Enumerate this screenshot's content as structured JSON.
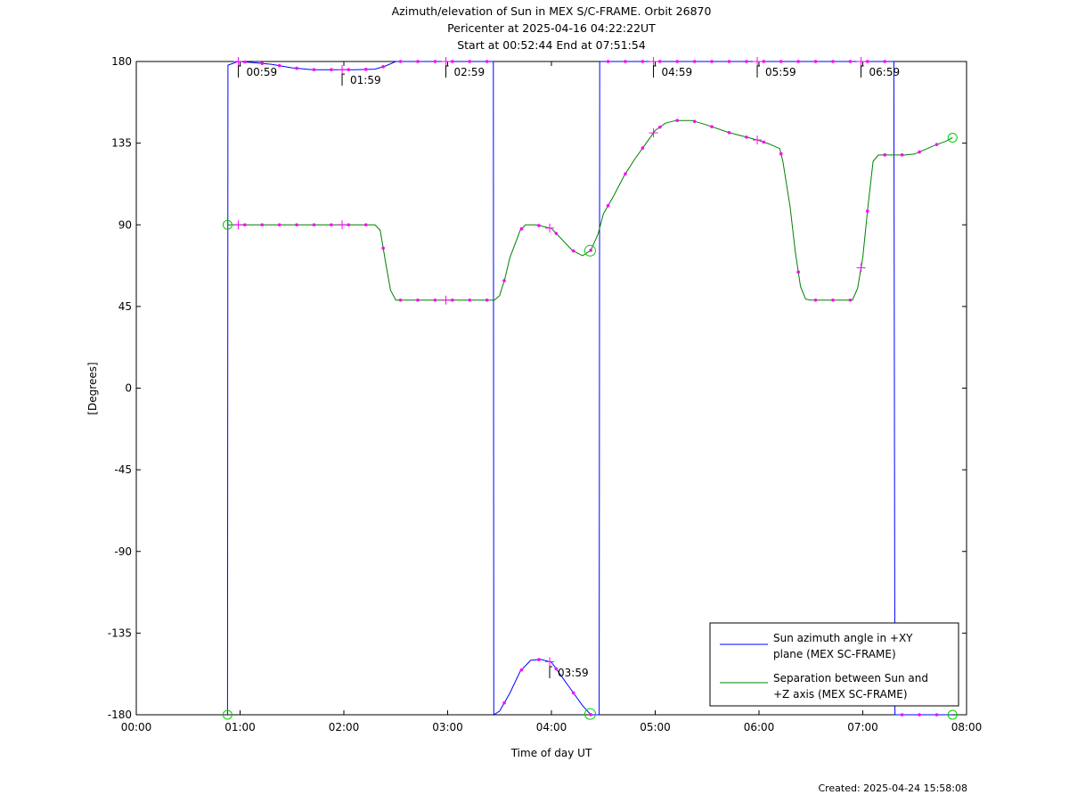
{
  "chart_data": {
    "type": "line",
    "title_lines": [
      "Azimuth/elevation of Sun in MEX S/C-FRAME.  Orbit 26870",
      "Pericenter at 2025-04-16 04:22:22UT",
      "Start at 00:52:44 End at 07:51:54"
    ],
    "xlabel": "Time of day UT",
    "ylabel": "[Degrees]",
    "xlim": [
      0,
      8
    ],
    "ylim": [
      -180,
      180
    ],
    "x_ticks": [
      0,
      1,
      2,
      3,
      4,
      5,
      6,
      7,
      8
    ],
    "x_tick_labels": [
      "00:00",
      "01:00",
      "02:00",
      "03:00",
      "04:00",
      "05:00",
      "06:00",
      "07:00",
      "08:00"
    ],
    "y_ticks": [
      180,
      135,
      90,
      45,
      0,
      -45,
      -90,
      -135,
      -180
    ],
    "y_tick_labels": [
      "180",
      "135",
      "90",
      "45",
      "0",
      "-45",
      "-90",
      "-135",
      "-180"
    ],
    "legend_position": "bottom-right",
    "series": [
      {
        "name_lines": [
          "Sun azimuth angle in +XY",
          "plane (MEX SC-FRAME)"
        ],
        "color": "#0000ff",
        "points": [
          [
            0.879,
            -180
          ],
          [
            0.883,
            178
          ],
          [
            0.98,
            180
          ],
          [
            1.1,
            179.5
          ],
          [
            1.3,
            178.5
          ],
          [
            1.5,
            176.5
          ],
          [
            1.7,
            175.5
          ],
          [
            1.9,
            175.5
          ],
          [
            2.1,
            175.5
          ],
          [
            2.3,
            175.8
          ],
          [
            2.4,
            177.5
          ],
          [
            2.5,
            180
          ],
          [
            3.44,
            180
          ],
          [
            3.445,
            -180
          ],
          [
            3.5,
            -178
          ],
          [
            3.6,
            -168
          ],
          [
            3.7,
            -156
          ],
          [
            3.8,
            -150
          ],
          [
            3.9,
            -149.5
          ],
          [
            4.0,
            -151
          ],
          [
            4.1,
            -159
          ],
          [
            4.2,
            -167
          ],
          [
            4.3,
            -175
          ],
          [
            4.38,
            -180
          ],
          [
            4.46,
            -180
          ],
          [
            4.465,
            180
          ],
          [
            5.0,
            180
          ],
          [
            6.0,
            180
          ],
          [
            7.0,
            180
          ],
          [
            7.3,
            180
          ],
          [
            7.31,
            -180
          ],
          [
            7.865,
            -180
          ]
        ],
        "time_markers": [
          {
            "label": "00:59",
            "x": 0.983,
            "y": 180
          },
          {
            "label": "01:59",
            "x": 1.983,
            "y": 175.5
          },
          {
            "label": "02:59",
            "x": 2.983,
            "y": 180
          },
          {
            "label": "03:59",
            "x": 3.983,
            "y": -151
          },
          {
            "label": "04:59",
            "x": 4.983,
            "y": 180
          },
          {
            "label": "05:59",
            "x": 5.983,
            "y": 180
          },
          {
            "label": "06:59",
            "x": 6.983,
            "y": 180
          }
        ]
      },
      {
        "name_lines": [
          "Separation between Sun and",
          "+Z axis (MEX SC-FRAME)"
        ],
        "color": "#008000",
        "points": [
          [
            0.879,
            90
          ],
          [
            2.3,
            90
          ],
          [
            2.35,
            87
          ],
          [
            2.4,
            70
          ],
          [
            2.45,
            54
          ],
          [
            2.5,
            48.5
          ],
          [
            3.45,
            48.5
          ],
          [
            3.5,
            51
          ],
          [
            3.55,
            60
          ],
          [
            3.6,
            72
          ],
          [
            3.7,
            87
          ],
          [
            3.75,
            90
          ],
          [
            3.85,
            90
          ],
          [
            4.0,
            88
          ],
          [
            4.1,
            82
          ],
          [
            4.2,
            76
          ],
          [
            4.3,
            73
          ],
          [
            4.38,
            76
          ],
          [
            4.45,
            85
          ],
          [
            4.5,
            96
          ],
          [
            4.6,
            106
          ],
          [
            4.7,
            117
          ],
          [
            4.8,
            126
          ],
          [
            4.9,
            134
          ],
          [
            5.0,
            142
          ],
          [
            5.1,
            146
          ],
          [
            5.2,
            147.5
          ],
          [
            5.35,
            147.5
          ],
          [
            5.5,
            145
          ],
          [
            5.7,
            141
          ],
          [
            5.9,
            138
          ],
          [
            6.0,
            136.5
          ],
          [
            6.1,
            134.5
          ],
          [
            6.2,
            132
          ],
          [
            6.23,
            125
          ],
          [
            6.3,
            100
          ],
          [
            6.35,
            75
          ],
          [
            6.4,
            56
          ],
          [
            6.45,
            49
          ],
          [
            6.5,
            48.5
          ],
          [
            6.9,
            48.5
          ],
          [
            6.95,
            55
          ],
          [
            7.0,
            72
          ],
          [
            7.05,
            100
          ],
          [
            7.1,
            125
          ],
          [
            7.15,
            128.5
          ],
          [
            7.4,
            128.5
          ],
          [
            7.5,
            129
          ],
          [
            7.6,
            131.5
          ],
          [
            7.7,
            134
          ],
          [
            7.8,
            136
          ],
          [
            7.865,
            138
          ]
        ]
      }
    ]
  },
  "footer": {
    "created": "Created: 2025-04-24 15:58:08"
  }
}
